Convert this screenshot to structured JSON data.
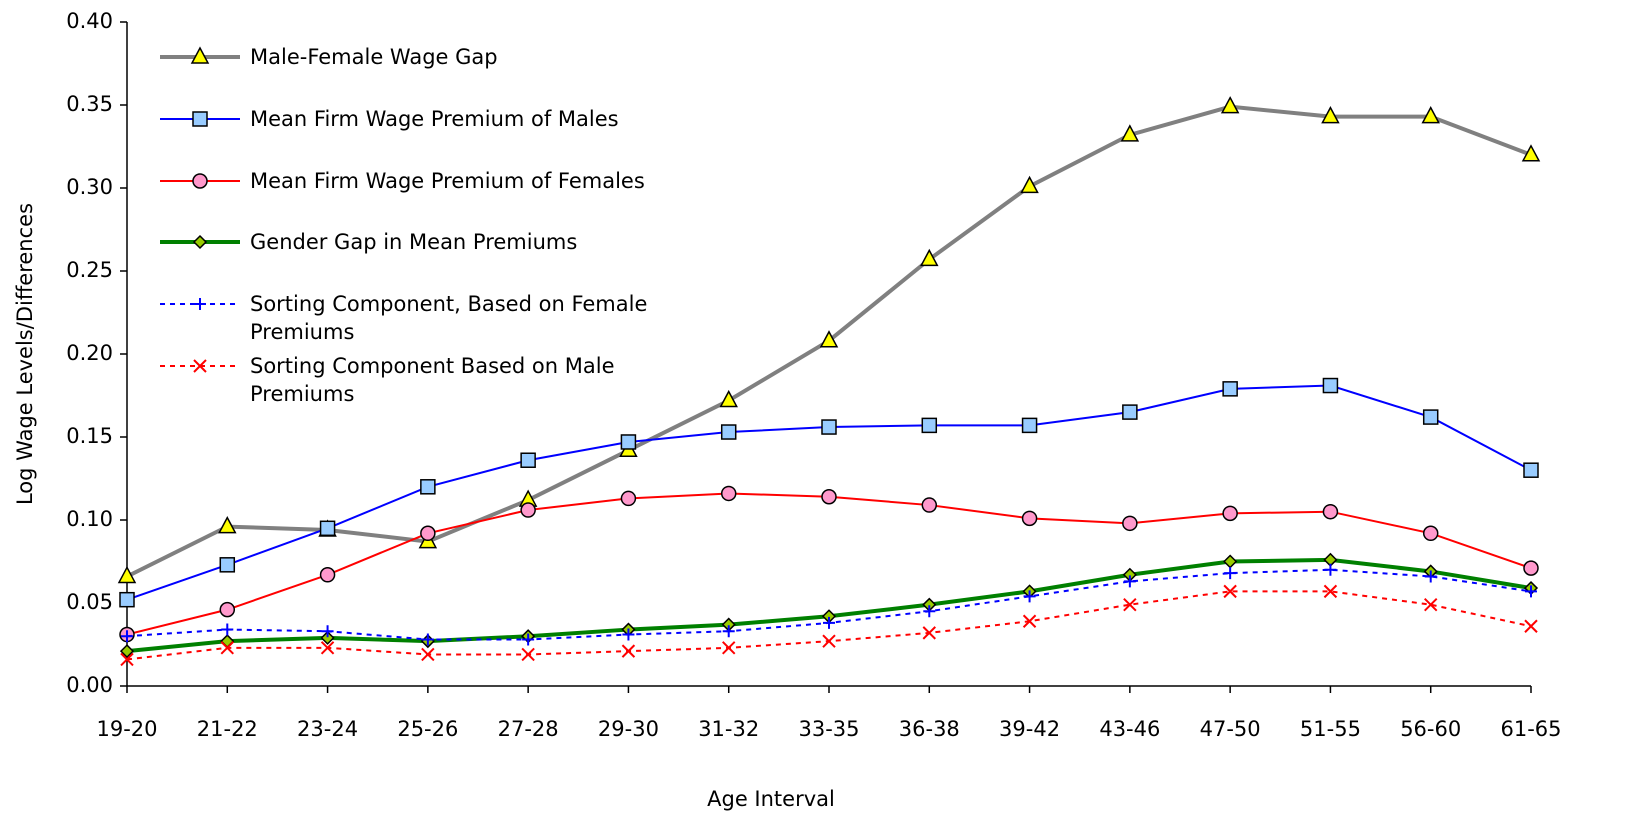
{
  "chart_data": {
    "type": "line",
    "x_label": "Age Interval",
    "y_label": "Log Wage Levels/Differences",
    "categories": [
      "19-20",
      "21-22",
      "23-24",
      "25-26",
      "27-28",
      "29-30",
      "31-32",
      "33-35",
      "36-38",
      "39-42",
      "43-46",
      "47-50",
      "51-55",
      "56-60",
      "61-65"
    ],
    "ylim": [
      0,
      0.4
    ],
    "yticks": [
      {
        "value": 0,
        "label": "0.00"
      },
      {
        "value": 0.05,
        "label": "0.05"
      },
      {
        "value": 0.1,
        "label": "0.10"
      },
      {
        "value": 0.15,
        "label": "0.15"
      },
      {
        "value": 0.2,
        "label": "0.20"
      },
      {
        "value": 0.25,
        "label": "0.25"
      },
      {
        "value": 0.3,
        "label": "0.30"
      },
      {
        "value": 0.35,
        "label": "0.35"
      },
      {
        "value": 0.4,
        "label": "0.40"
      }
    ],
    "legend": "upper left",
    "series": [
      {
        "name": "Male-Female Wage Gap",
        "color": "#808080",
        "marker": "triangle",
        "marker_fill": "#ffff00",
        "line_width": 4,
        "dash": false,
        "values": [
          0.066,
          0.096,
          0.094,
          0.087,
          0.112,
          0.142,
          0.172,
          0.208,
          0.257,
          0.301,
          0.332,
          0.349,
          0.343,
          0.343,
          0.32
        ]
      },
      {
        "name": "Mean Firm Wage Premium of Males",
        "color": "#0000ff",
        "marker": "square",
        "marker_fill": "#99ccff",
        "line_width": 2,
        "dash": false,
        "values": [
          0.052,
          0.073,
          0.095,
          0.12,
          0.136,
          0.147,
          0.153,
          0.156,
          0.157,
          0.157,
          0.165,
          0.179,
          0.181,
          0.162,
          0.13
        ]
      },
      {
        "name": "Mean Firm Wage Premium of Females",
        "color": "#ff0000",
        "marker": "circle",
        "marker_fill": "#ff99cc",
        "line_width": 2,
        "dash": false,
        "values": [
          0.031,
          0.046,
          0.067,
          0.092,
          0.106,
          0.113,
          0.116,
          0.114,
          0.109,
          0.101,
          0.098,
          0.104,
          0.105,
          0.092,
          0.071
        ]
      },
      {
        "name": "Gender Gap in Mean Premiums",
        "color": "#008000",
        "marker": "diamond",
        "marker_fill": "#99cc00",
        "line_width": 4,
        "dash": false,
        "values": [
          0.021,
          0.027,
          0.029,
          0.027,
          0.03,
          0.034,
          0.037,
          0.042,
          0.049,
          0.057,
          0.067,
          0.075,
          0.076,
          0.069,
          0.059
        ]
      },
      {
        "name": "Sorting Component, Based on Female Premiums",
        "color": "#0000ff",
        "marker": "plus",
        "marker_fill": "none",
        "line_width": 2,
        "dash": true,
        "values": [
          0.03,
          0.034,
          0.033,
          0.028,
          0.028,
          0.031,
          0.033,
          0.038,
          0.045,
          0.054,
          0.063,
          0.068,
          0.07,
          0.066,
          0.057
        ]
      },
      {
        "name": "Sorting Component Based on Male Premiums",
        "color": "#ff0000",
        "marker": "x",
        "marker_fill": "none",
        "line_width": 2,
        "dash": true,
        "values": [
          0.016,
          0.023,
          0.023,
          0.019,
          0.019,
          0.021,
          0.023,
          0.027,
          0.032,
          0.039,
          0.049,
          0.057,
          0.057,
          0.049,
          0.036
        ]
      }
    ]
  }
}
